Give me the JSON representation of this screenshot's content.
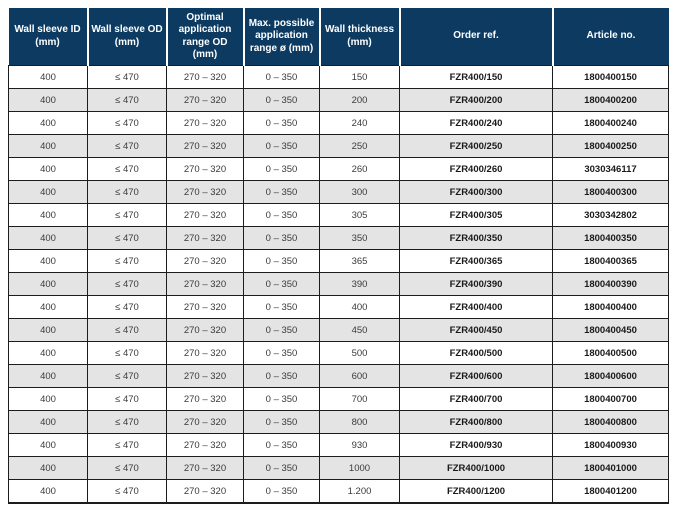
{
  "table": {
    "columns": [
      {
        "id": "wall-sleeve-id",
        "label": "Wall sleeve ID (mm)",
        "label_lines": [
          "Wall sleeve ID",
          "(mm)"
        ]
      },
      {
        "id": "wall-sleeve-od",
        "label": "Wall sleeve OD (mm)",
        "label_lines": [
          "Wall sleeve OD",
          "(mm)"
        ]
      },
      {
        "id": "optimal-range-od",
        "label": "Optimal application range OD (mm)",
        "label_lines": [
          "Optimal",
          "application",
          "range OD",
          "(mm)"
        ]
      },
      {
        "id": "max-range",
        "label": "Max. possible application range ø (mm)",
        "label_lines": [
          "Max. possible",
          "application",
          "range ø (mm)"
        ]
      },
      {
        "id": "wall-thickness",
        "label": "Wall thickness (mm)",
        "label_lines": [
          "Wall thickness",
          "(mm)"
        ]
      },
      {
        "id": "order-ref",
        "label": "Order ref.",
        "label_lines": [
          "Order ref."
        ]
      },
      {
        "id": "article-no",
        "label": "Article no.",
        "label_lines": [
          "Article no."
        ]
      }
    ],
    "rows": [
      [
        "400",
        "≤ 470",
        "270 – 320",
        "0 – 350",
        "150",
        "FZR400/150",
        "1800400150"
      ],
      [
        "400",
        "≤ 470",
        "270 – 320",
        "0 – 350",
        "200",
        "FZR400/200",
        "1800400200"
      ],
      [
        "400",
        "≤ 470",
        "270 – 320",
        "0 – 350",
        "240",
        "FZR400/240",
        "1800400240"
      ],
      [
        "400",
        "≤ 470",
        "270 – 320",
        "0 – 350",
        "250",
        "FZR400/250",
        "1800400250"
      ],
      [
        "400",
        "≤ 470",
        "270 – 320",
        "0 – 350",
        "260",
        "FZR400/260",
        "3030346117"
      ],
      [
        "400",
        "≤ 470",
        "270 – 320",
        "0 – 350",
        "300",
        "FZR400/300",
        "1800400300"
      ],
      [
        "400",
        "≤ 470",
        "270 – 320",
        "0 – 350",
        "305",
        "FZR400/305",
        "3030342802"
      ],
      [
        "400",
        "≤ 470",
        "270 – 320",
        "0 – 350",
        "350",
        "FZR400/350",
        "1800400350"
      ],
      [
        "400",
        "≤ 470",
        "270 – 320",
        "0 – 350",
        "365",
        "FZR400/365",
        "1800400365"
      ],
      [
        "400",
        "≤ 470",
        "270 – 320",
        "0 – 350",
        "390",
        "FZR400/390",
        "1800400390"
      ],
      [
        "400",
        "≤ 470",
        "270 – 320",
        "0 – 350",
        "400",
        "FZR400/400",
        "1800400400"
      ],
      [
        "400",
        "≤ 470",
        "270 – 320",
        "0 – 350",
        "450",
        "FZR400/450",
        "1800400450"
      ],
      [
        "400",
        "≤ 470",
        "270 – 320",
        "0 – 350",
        "500",
        "FZR400/500",
        "1800400500"
      ],
      [
        "400",
        "≤ 470",
        "270 – 320",
        "0 – 350",
        "600",
        "FZR400/600",
        "1800400600"
      ],
      [
        "400",
        "≤ 470",
        "270 – 320",
        "0 – 350",
        "700",
        "FZR400/700",
        "1800400700"
      ],
      [
        "400",
        "≤ 470",
        "270 – 320",
        "0 – 350",
        "800",
        "FZR400/800",
        "1800400800"
      ],
      [
        "400",
        "≤ 470",
        "270 – 320",
        "0 – 350",
        "930",
        "FZR400/930",
        "1800400930"
      ],
      [
        "400",
        "≤ 470",
        "270 – 320",
        "0 – 350",
        "1000",
        "FZR400/1000",
        "1800401000"
      ],
      [
        "400",
        "≤ 470",
        "270 – 320",
        "0 – 350",
        "1.200",
        "FZR400/1200",
        "1800401200"
      ]
    ]
  },
  "colors": {
    "header_bg": "#0c3a61",
    "header_text": "#ffffff",
    "row_stripe": "#e4e4e4",
    "border": "#1c1c1c"
  }
}
